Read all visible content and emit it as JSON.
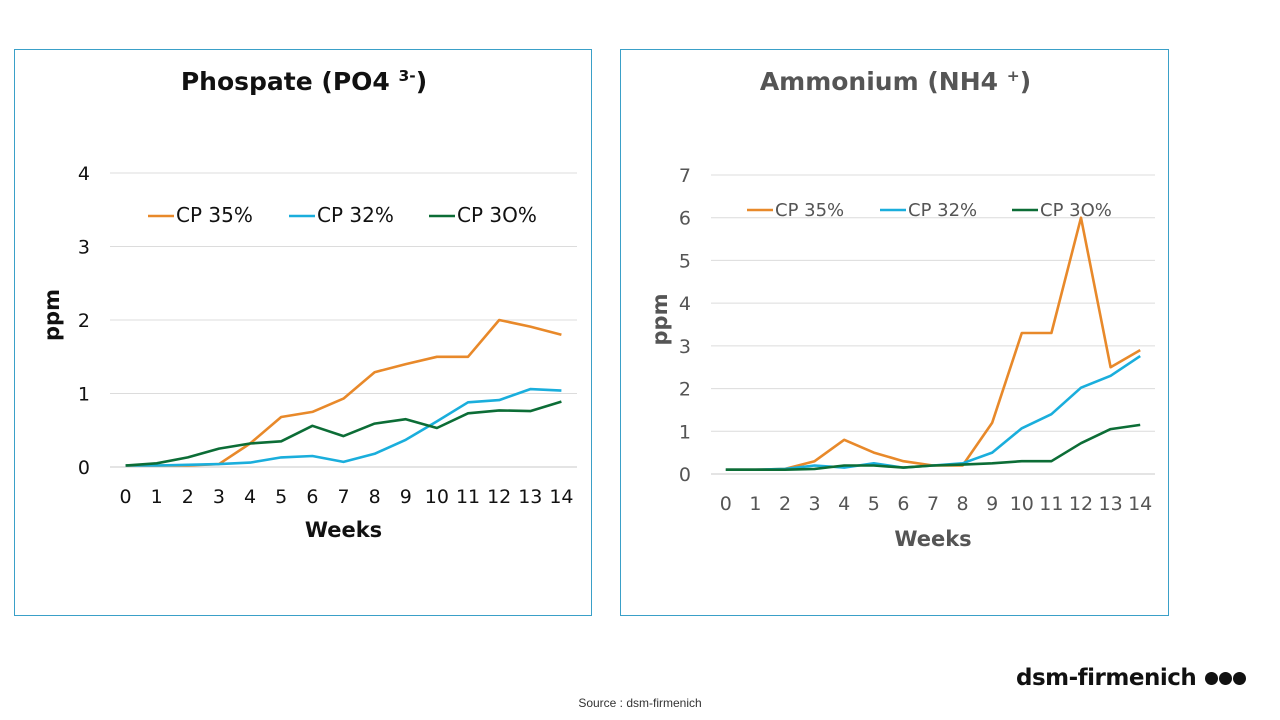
{
  "chart_data": [
    {
      "type": "line",
      "title": "Phospate (PO4",
      "title_superscript": "3-",
      "title_close": ")",
      "xlabel": "Weeks",
      "ylabel": "ppm",
      "categories": [
        "0",
        "1",
        "2",
        "3",
        "4",
        "5",
        "6",
        "7",
        "8",
        "9",
        "10",
        "11",
        "12",
        "13",
        "14"
      ],
      "ylim": [
        0,
        4
      ],
      "yticks": [
        "0",
        "1",
        "2",
        "3",
        "4"
      ],
      "grid": true,
      "legend_position": "top",
      "series": [
        {
          "name": "CP 35%",
          "color": "#e8892a",
          "values": [
            0.02,
            0.02,
            0.02,
            0.04,
            0.32,
            0.68,
            0.75,
            0.93,
            1.29,
            1.4,
            1.5,
            1.5,
            2.0,
            1.91,
            1.8
          ]
        },
        {
          "name": "CP 32%",
          "color": "#1aaedc",
          "values": [
            0.02,
            0.02,
            0.03,
            0.04,
            0.06,
            0.13,
            0.15,
            0.07,
            0.18,
            0.37,
            0.62,
            0.88,
            0.91,
            1.06,
            1.04
          ]
        },
        {
          "name": "CP 3O%",
          "color": "#0c6d36",
          "values": [
            0.02,
            0.05,
            0.13,
            0.25,
            0.32,
            0.35,
            0.56,
            0.42,
            0.59,
            0.65,
            0.53,
            0.73,
            0.77,
            0.76,
            0.89
          ]
        }
      ]
    },
    {
      "type": "line",
      "title": "Ammonium (NH4",
      "title_superscript": "+",
      "title_close": ")",
      "xlabel": "Weeks",
      "ylabel": "ppm",
      "categories": [
        "0",
        "1",
        "2",
        "3",
        "4",
        "5",
        "6",
        "7",
        "8",
        "9",
        "10",
        "11",
        "12",
        "13",
        "14"
      ],
      "ylim": [
        0,
        7
      ],
      "yticks": [
        "0",
        "1",
        "2",
        "3",
        "4",
        "5",
        "6",
        "7"
      ],
      "grid": true,
      "legend_position": "top",
      "series": [
        {
          "name": "CP 35%",
          "color": "#e8892a",
          "values": [
            0.1,
            0.1,
            0.12,
            0.3,
            0.8,
            0.5,
            0.3,
            0.2,
            0.2,
            1.2,
            3.3,
            3.3,
            6.0,
            2.5,
            2.9
          ]
        },
        {
          "name": "CP 32%",
          "color": "#1aaedc",
          "values": [
            0.1,
            0.1,
            0.12,
            0.2,
            0.15,
            0.25,
            0.15,
            0.2,
            0.25,
            0.5,
            1.07,
            1.4,
            2.02,
            2.3,
            2.76
          ]
        },
        {
          "name": "CP 3O%",
          "color": "#0c6d36",
          "values": [
            0.1,
            0.1,
            0.1,
            0.12,
            0.2,
            0.2,
            0.15,
            0.2,
            0.22,
            0.25,
            0.3,
            0.3,
            0.72,
            1.05,
            1.15
          ]
        }
      ]
    }
  ],
  "source": "Source : dsm-firmenich",
  "brand": {
    "name": "dsm-firmenich"
  }
}
